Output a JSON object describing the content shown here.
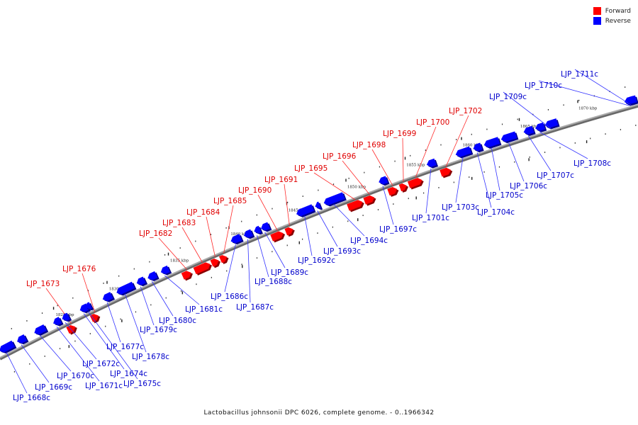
{
  "legend": {
    "forward_label": "Forward",
    "reverse_label": "Reverse",
    "forward_color": "#ff0000",
    "reverse_color": "#0000ff"
  },
  "caption": "Lactobacillus johnsonii DPC 6026, complete genome. - 0..1966342",
  "axis": {
    "ticks": [
      "1825 kbp",
      "1830 kbp",
      "1835 kbp",
      "1840 kbp",
      "1845 kbp",
      "1850 kbp",
      "1855 kbp",
      "1860 kbp",
      "1865 kbp",
      "1870 kbp"
    ]
  },
  "genes": {
    "forward": [
      "LJP_1673",
      "LJP_1676",
      "LJP_1682",
      "LJP_1683",
      "LJP_1684",
      "LJP_1685",
      "LJP_1690",
      "LJP_1691",
      "LJP_1695",
      "LJP_1696",
      "LJP_1698",
      "LJP_1699",
      "LJP_1700",
      "LJP_1702"
    ],
    "reverse": [
      "LJP_1668c",
      "LJP_1669c",
      "LJP_1670c",
      "LJP_1671c",
      "LJP_1672c",
      "LJP_1674c",
      "LJP_1675c",
      "LJP_1677c",
      "LJP_1678c",
      "LJP_1679c",
      "LJP_1680c",
      "LJP_1681c",
      "LJP_1686c",
      "LJP_1687c",
      "LJP_1688c",
      "LJP_1689c",
      "LJP_1692c",
      "LJP_1693c",
      "LJP_1694c",
      "LJP_1697c",
      "LJP_1701c",
      "LJP_1703c",
      "LJP_1704c",
      "LJP_1705c",
      "LJP_1706c",
      "LJP_1707c",
      "LJP_1708c",
      "LJP_1709c",
      "LJP_1710c",
      "LJP_1711c"
    ]
  }
}
